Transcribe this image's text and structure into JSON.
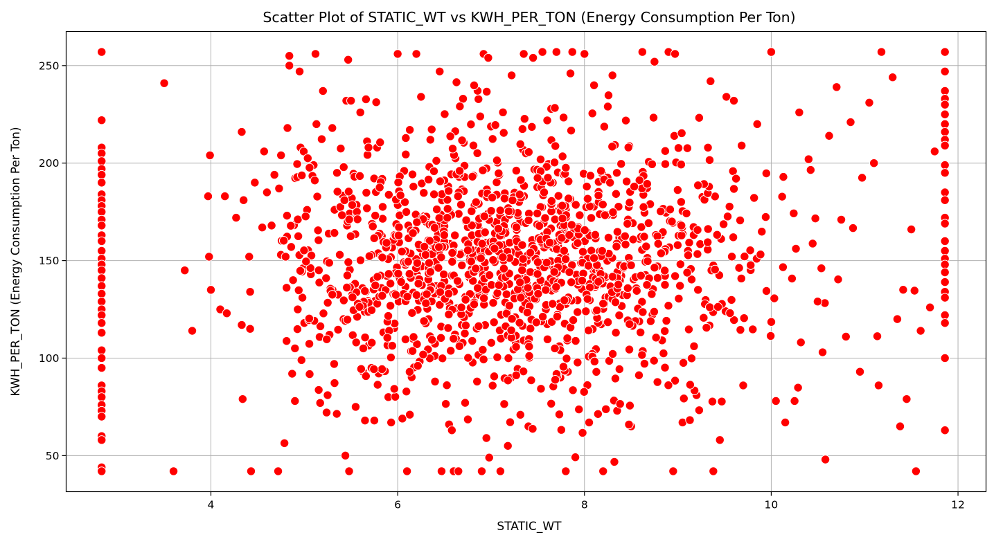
{
  "chart_data": {
    "type": "scatter",
    "title": "Scatter Plot of STATIC_WT vs KWH_PER_TON (Energy Consumption Per Ton)",
    "xlabel": "STATIC_WT",
    "ylabel": "KWH_PER_TON (Energy Consumption Per Ton)",
    "xlim": [
      2.45,
      12.3
    ],
    "ylim": [
      31.5,
      267.5
    ],
    "xticks": [
      4,
      6,
      8,
      10,
      12
    ],
    "yticks": [
      50,
      100,
      150,
      200,
      250
    ],
    "grid": true,
    "marker_color": "#ff0000",
    "marker_edge_color": "#ffffff",
    "point_count_approx": 1500,
    "edge_columns": [
      {
        "x": 2.83,
        "y_values": [
          257,
          222,
          208,
          205,
          201,
          197,
          194,
          190,
          184,
          181,
          178,
          175,
          171,
          168,
          163,
          160,
          155,
          151,
          148,
          145,
          141,
          137,
          133,
          129,
          125,
          122,
          118,
          113,
          104,
          100,
          95,
          86,
          83,
          80,
          76,
          73,
          70,
          60,
          58,
          44,
          42
        ]
      },
      {
        "x": 11.86,
        "y_values": [
          257,
          247,
          237,
          233,
          230,
          225,
          220,
          216,
          212,
          209,
          199,
          195,
          185,
          181,
          172,
          169,
          160,
          155,
          151,
          148,
          144,
          139,
          134,
          131,
          122,
          118,
          100,
          63
        ]
      }
    ],
    "points": [
      [
        3.5,
        241
      ],
      [
        3.6,
        42
      ],
      [
        3.72,
        145
      ],
      [
        3.8,
        114
      ],
      [
        3.97,
        183
      ],
      [
        3.98,
        152
      ],
      [
        3.99,
        204
      ],
      [
        4.0,
        135
      ],
      [
        4.1,
        125
      ],
      [
        4.15,
        183
      ],
      [
        4.17,
        123
      ],
      [
        4.27,
        172
      ],
      [
        4.33,
        117
      ],
      [
        4.33,
        216
      ],
      [
        4.34,
        79
      ],
      [
        4.35,
        181
      ],
      [
        4.41,
        152
      ],
      [
        4.42,
        115
      ],
      [
        4.42,
        134
      ],
      [
        4.43,
        42
      ],
      [
        4.47,
        190
      ],
      [
        4.55,
        167
      ],
      [
        4.57,
        206
      ],
      [
        4.6,
        185
      ],
      [
        4.65,
        168
      ],
      [
        4.68,
        194
      ],
      [
        4.72,
        42
      ],
      [
        4.73,
        187
      ],
      [
        4.75,
        153
      ],
      [
        4.8,
        152
      ],
      [
        4.82,
        218
      ],
      [
        4.84,
        255
      ],
      [
        4.84,
        250
      ],
      [
        4.86,
        157
      ],
      [
        4.87,
        92
      ],
      [
        4.88,
        140
      ],
      [
        4.9,
        105
      ],
      [
        4.9,
        78
      ],
      [
        4.93,
        125
      ],
      [
        4.95,
        247
      ],
      [
        4.96,
        208
      ],
      [
        4.97,
        99
      ],
      [
        4.98,
        131
      ],
      [
        5.0,
        118
      ],
      [
        5.03,
        176
      ],
      [
        5.07,
        143
      ],
      [
        5.1,
        199
      ],
      [
        5.12,
        256
      ],
      [
        5.13,
        220
      ],
      [
        5.17,
        77
      ],
      [
        5.2,
        237
      ],
      [
        5.25,
        81
      ],
      [
        5.27,
        112
      ],
      [
        5.3,
        218
      ],
      [
        5.32,
        97
      ],
      [
        5.35,
        195
      ],
      [
        5.38,
        153
      ],
      [
        5.42,
        120
      ],
      [
        5.44,
        50
      ],
      [
        5.45,
        232
      ],
      [
        5.47,
        253
      ],
      [
        5.48,
        42
      ],
      [
        5.5,
        232
      ],
      [
        5.55,
        75
      ],
      [
        5.6,
        226
      ],
      [
        5.63,
        93
      ],
      [
        5.65,
        68
      ],
      [
        5.72,
        95
      ],
      [
        5.75,
        68
      ],
      [
        5.78,
        208
      ],
      [
        5.9,
        80
      ],
      [
        5.93,
        67
      ],
      [
        6.0,
        256
      ],
      [
        6.05,
        69
      ],
      [
        6.1,
        42
      ],
      [
        6.13,
        71
      ],
      [
        6.2,
        256
      ],
      [
        6.25,
        234
      ],
      [
        6.35,
        212
      ],
      [
        6.4,
        88
      ],
      [
        6.45,
        247
      ],
      [
        6.47,
        42
      ],
      [
        6.55,
        66
      ],
      [
        6.58,
        63
      ],
      [
        6.6,
        42
      ],
      [
        6.65,
        42
      ],
      [
        6.7,
        233
      ],
      [
        6.85,
        88
      ],
      [
        6.9,
        42
      ],
      [
        6.92,
        256
      ],
      [
        6.95,
        59
      ],
      [
        6.97,
        254
      ],
      [
        6.98,
        49
      ],
      [
        7.1,
        42
      ],
      [
        7.18,
        55
      ],
      [
        7.22,
        245
      ],
      [
        7.35,
        256
      ],
      [
        7.4,
        65
      ],
      [
        7.45,
        254
      ],
      [
        7.55,
        257
      ],
      [
        7.7,
        257
      ],
      [
        7.8,
        42
      ],
      [
        7.85,
        246
      ],
      [
        7.87,
        257
      ],
      [
        8.0,
        256
      ],
      [
        8.05,
        67
      ],
      [
        8.2,
        42
      ],
      [
        8.25,
        229
      ],
      [
        8.3,
        245
      ],
      [
        8.35,
        73
      ],
      [
        8.5,
        65
      ],
      [
        8.62,
        257
      ],
      [
        8.75,
        252
      ],
      [
        8.9,
        257
      ],
      [
        8.95,
        42
      ],
      [
        8.97,
        256
      ],
      [
        9.05,
        67
      ],
      [
        9.2,
        81
      ],
      [
        9.35,
        242
      ],
      [
        9.38,
        42
      ],
      [
        9.45,
        58
      ],
      [
        9.52,
        234
      ],
      [
        9.6,
        232
      ],
      [
        9.7,
        86
      ],
      [
        9.85,
        220
      ],
      [
        10.0,
        257
      ],
      [
        10.05,
        78
      ],
      [
        10.15,
        67
      ],
      [
        10.25,
        78
      ],
      [
        10.3,
        226
      ],
      [
        10.4,
        202
      ],
      [
        10.55,
        103
      ],
      [
        10.58,
        48
      ],
      [
        10.62,
        214
      ],
      [
        10.7,
        239
      ],
      [
        10.75,
        171
      ],
      [
        10.8,
        111
      ],
      [
        10.85,
        221
      ],
      [
        10.95,
        93
      ],
      [
        11.05,
        231
      ],
      [
        11.1,
        200
      ],
      [
        11.15,
        86
      ],
      [
        11.18,
        257
      ],
      [
        11.3,
        244
      ],
      [
        11.35,
        120
      ],
      [
        11.38,
        65
      ],
      [
        11.45,
        79
      ],
      [
        11.5,
        166
      ],
      [
        11.55,
        42
      ],
      [
        11.6,
        114
      ],
      [
        11.7,
        126
      ],
      [
        11.75,
        206
      ]
    ]
  }
}
